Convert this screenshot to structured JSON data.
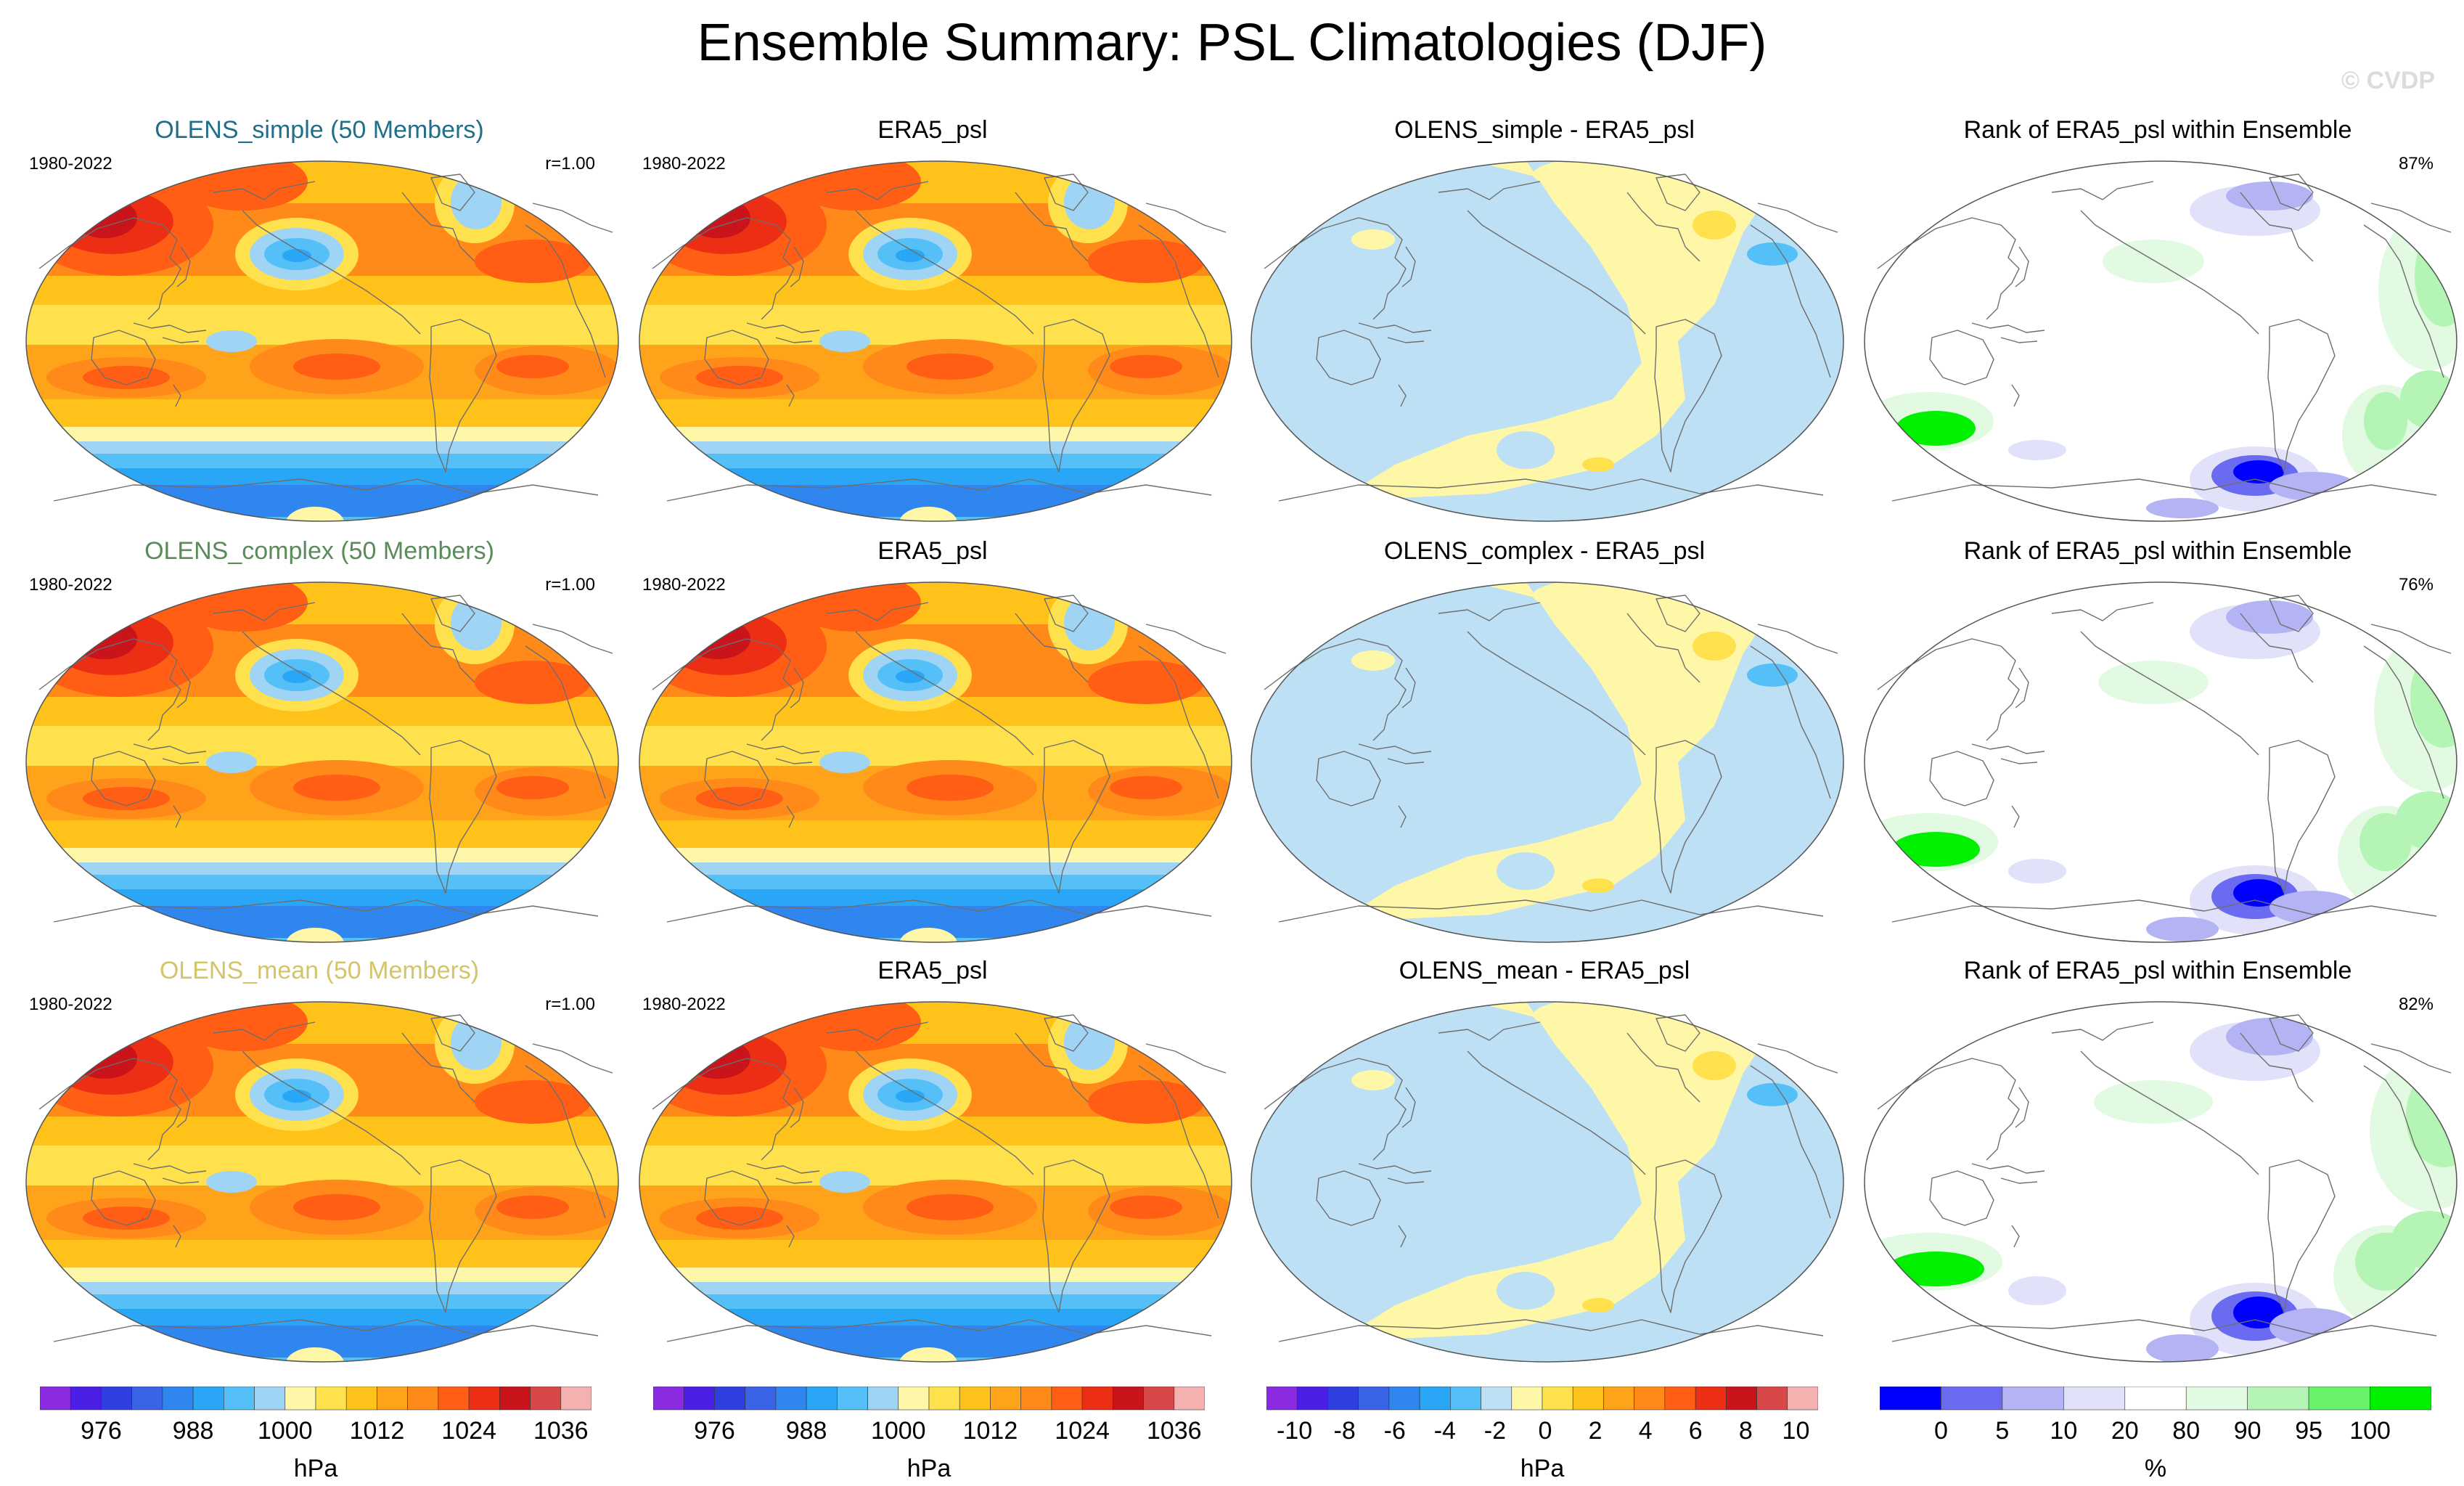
{
  "figure": {
    "title": "Ensemble Summary: PSL Climatologies (DJF)",
    "watermark": "© CVDP"
  },
  "colors": {
    "psl_palette": [
      "#8a2be2",
      "#4b1fe6",
      "#2f3fe0",
      "#3b63e6",
      "#2f86ee",
      "#2aa6f6",
      "#55c0f7",
      "#9fd4f5",
      "#fff7a8",
      "#ffe14d",
      "#ffc21a",
      "#ffa41a",
      "#ff8a1a",
      "#ff5e14",
      "#ec2f14",
      "#c8141a",
      "#d94848",
      "#f5b0b0"
    ],
    "diff_palette": [
      "#8a2be2",
      "#4b1fe6",
      "#2f3fe0",
      "#3b63e6",
      "#2f86ee",
      "#2aa6f6",
      "#55c0f7",
      "#bde0f4",
      "#fff7a8",
      "#ffe14d",
      "#ffc21a",
      "#ffa41a",
      "#ff8a1a",
      "#ff5e14",
      "#ec2f14",
      "#c8141a",
      "#d94848",
      "#f5b0b0"
    ],
    "rank_palette": [
      "#0000ff",
      "#6b6bf2",
      "#b4b4f4",
      "#e1e1fa",
      "#ffffff",
      "#e1fae1",
      "#b4f4b4",
      "#6bf26b",
      "#00f000"
    ],
    "title_simple": "#1f6f8b",
    "title_complex": "#5b8a5b",
    "title_mean": "#d4c46a"
  },
  "rows": [
    {
      "ensemble": {
        "title": "OLENS_simple (50 Members)",
        "period": "1980-2022",
        "corr": "r=1.00"
      },
      "obs": {
        "title": "ERA5_psl",
        "period": "1980-2022"
      },
      "diff": {
        "title": "OLENS_simple - ERA5_psl"
      },
      "rank": {
        "title": "Rank of ERA5_psl within Ensemble",
        "percent": "87%"
      }
    },
    {
      "ensemble": {
        "title": "OLENS_complex (50 Members)",
        "period": "1980-2022",
        "corr": "r=1.00"
      },
      "obs": {
        "title": "ERA5_psl",
        "period": "1980-2022"
      },
      "diff": {
        "title": "OLENS_complex - ERA5_psl"
      },
      "rank": {
        "title": "Rank of ERA5_psl within Ensemble",
        "percent": "76%"
      }
    },
    {
      "ensemble": {
        "title": "OLENS_mean (50 Members)",
        "period": "1980-2022",
        "corr": "r=1.00"
      },
      "obs": {
        "title": "ERA5_psl",
        "period": "1980-2022"
      },
      "diff": {
        "title": "OLENS_mean - ERA5_psl"
      },
      "rank": {
        "title": "Rank of ERA5_psl within Ensemble",
        "percent": "82%"
      }
    }
  ],
  "colorbars": [
    {
      "unit": "hPa",
      "labels": [
        "976",
        "988",
        "1000",
        "1012",
        "1024",
        "1036"
      ]
    },
    {
      "unit": "hPa",
      "labels": [
        "976",
        "988",
        "1000",
        "1012",
        "1024",
        "1036"
      ]
    },
    {
      "unit": "hPa",
      "labels": [
        "-10",
        "-8",
        "-6",
        "-4",
        "-2",
        "0",
        "2",
        "4",
        "6",
        "8",
        "10"
      ]
    },
    {
      "unit": "%",
      "labels": [
        "0",
        "5",
        "10",
        "20",
        "80",
        "90",
        "95",
        "100"
      ]
    }
  ],
  "chart_data": {
    "type": "heatmap",
    "title": "Ensemble Summary: PSL Climatologies (DJF)",
    "season": "DJF",
    "period": "1980-2022",
    "panels_per_row": [
      "ensemble mean climatology",
      "ERA5_psl",
      "difference",
      "rank"
    ],
    "psl_contour_levels_hPa": [
      968,
      972,
      976,
      980,
      984,
      988,
      992,
      996,
      1000,
      1004,
      1008,
      1012,
      1016,
      1020,
      1024,
      1028,
      1032,
      1036,
      1040
    ],
    "diff_contour_levels_hPa": [
      -10,
      -9,
      -8,
      -7,
      -6,
      -5,
      -4,
      -3,
      -2,
      -1,
      0,
      1,
      2,
      3,
      4,
      5,
      6,
      7,
      8,
      9,
      10
    ],
    "rank_levels_percent": [
      0,
      5,
      10,
      20,
      80,
      90,
      95,
      100
    ],
    "rank_summary_percent": [
      87,
      76,
      82
    ],
    "pattern_correlation": [
      1.0,
      1.0,
      1.0
    ]
  }
}
